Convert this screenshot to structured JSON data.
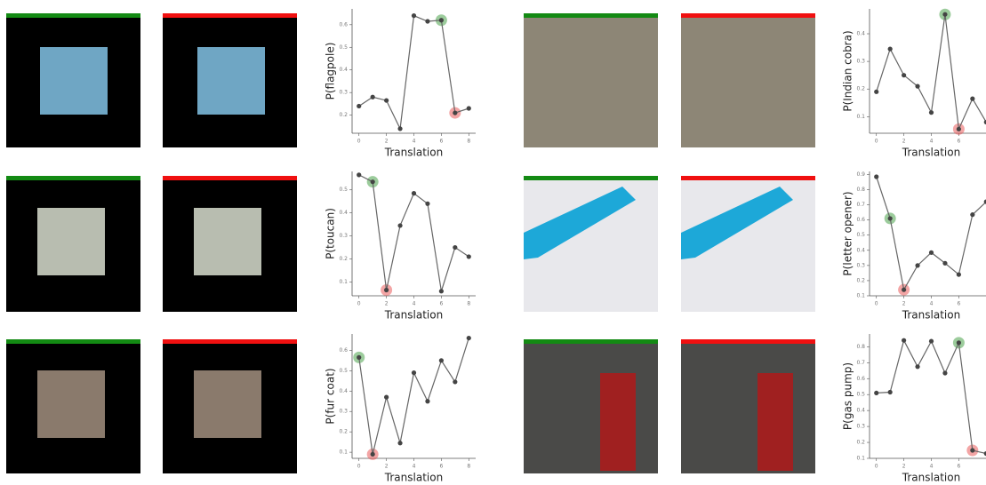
{
  "chart_data": [
    {
      "type": "line",
      "ylabel": "P(flagpole)",
      "xlabel": "Translation",
      "color": "#666666",
      "x": [
        0,
        1,
        2,
        3,
        4,
        5,
        6,
        7,
        8
      ],
      "values": [
        0.24,
        0.28,
        0.265,
        0.14,
        0.64,
        0.615,
        0.62,
        0.21,
        0.23
      ],
      "xlim": [
        -0.5,
        8.5
      ],
      "ylim": [
        0.12,
        0.67
      ],
      "xticks": [
        0,
        2,
        4,
        6,
        8
      ],
      "yticks": [
        0.2,
        0.3,
        0.4,
        0.5,
        0.6
      ],
      "highlight": [
        {
          "index": 6,
          "color": "#3a9a3a"
        },
        {
          "index": 7,
          "color": "#e84c4c"
        }
      ]
    },
    {
      "type": "line",
      "ylabel": "P(toucan)",
      "xlabel": "Translation",
      "color": "#666666",
      "x": [
        0,
        1,
        2,
        3,
        4,
        5,
        6,
        7,
        8
      ],
      "values": [
        0.565,
        0.535,
        0.065,
        0.345,
        0.485,
        0.44,
        0.06,
        0.25,
        0.21
      ],
      "xlim": [
        -0.5,
        8.5
      ],
      "ylim": [
        0.04,
        0.58
      ],
      "xticks": [
        0,
        2,
        4,
        6,
        8
      ],
      "yticks": [
        0.1,
        0.2,
        0.3,
        0.4,
        0.5
      ],
      "highlight": [
        {
          "index": 1,
          "color": "#3a9a3a"
        },
        {
          "index": 2,
          "color": "#e84c4c"
        }
      ]
    },
    {
      "type": "line",
      "ylabel": "P(fur coat)",
      "xlabel": "Translation",
      "color": "#666666",
      "x": [
        0,
        1,
        2,
        3,
        4,
        5,
        6,
        7,
        8
      ],
      "values": [
        0.565,
        0.09,
        0.37,
        0.145,
        0.49,
        0.35,
        0.55,
        0.445,
        0.66
      ],
      "xlim": [
        -0.5,
        8.5
      ],
      "ylim": [
        0.07,
        0.68
      ],
      "xticks": [
        0,
        2,
        4,
        6,
        8
      ],
      "yticks": [
        0.1,
        0.2,
        0.3,
        0.4,
        0.5,
        0.6
      ],
      "highlight": [
        {
          "index": 0,
          "color": "#3a9a3a"
        },
        {
          "index": 1,
          "color": "#e84c4c"
        }
      ]
    },
    {
      "type": "line",
      "ylabel": "P(Indian cobra)",
      "xlabel": "Translation",
      "color": "#666666",
      "x": [
        0,
        1,
        2,
        3,
        4,
        5,
        6,
        7,
        8
      ],
      "values": [
        0.19,
        0.345,
        0.25,
        0.21,
        0.115,
        0.47,
        0.055,
        0.165,
        0.08
      ],
      "xlim": [
        -0.5,
        8.5
      ],
      "ylim": [
        0.04,
        0.49
      ],
      "xticks": [
        0,
        2,
        4,
        6
      ],
      "yticks": [
        0.1,
        0.2,
        0.3,
        0.4
      ],
      "highlight": [
        {
          "index": 5,
          "color": "#3a9a3a"
        },
        {
          "index": 6,
          "color": "#e84c4c"
        }
      ]
    },
    {
      "type": "line",
      "ylabel": "P(letter opener)",
      "xlabel": "Translation",
      "color": "#666666",
      "x": [
        0,
        1,
        2,
        3,
        4,
        5,
        6,
        7,
        8
      ],
      "values": [
        0.885,
        0.61,
        0.14,
        0.3,
        0.385,
        0.315,
        0.24,
        0.635,
        0.72
      ],
      "xlim": [
        -0.5,
        8.5
      ],
      "ylim": [
        0.1,
        0.92
      ],
      "xticks": [
        0,
        2,
        4,
        6
      ],
      "yticks": [
        0.1,
        0.2,
        0.3,
        0.4,
        0.5,
        0.6,
        0.7,
        0.8,
        0.9
      ],
      "highlight": [
        {
          "index": 1,
          "color": "#3a9a3a"
        },
        {
          "index": 2,
          "color": "#e84c4c"
        }
      ]
    },
    {
      "type": "line",
      "ylabel": "P(gas pump)",
      "xlabel": "Translation",
      "color": "#666666",
      "x": [
        0,
        1,
        2,
        3,
        4,
        5,
        6,
        7,
        8
      ],
      "values": [
        0.51,
        0.515,
        0.84,
        0.675,
        0.835,
        0.635,
        0.825,
        0.15,
        0.13
      ],
      "xlim": [
        -0.5,
        8.5
      ],
      "ylim": [
        0.1,
        0.88
      ],
      "xticks": [
        0,
        2,
        4,
        6
      ],
      "yticks": [
        0.1,
        0.2,
        0.3,
        0.4,
        0.5,
        0.6,
        0.7,
        0.8
      ],
      "highlight": [
        {
          "index": 6,
          "color": "#3a9a3a"
        },
        {
          "index": 7,
          "color": "#e84c4c"
        }
      ]
    }
  ]
}
